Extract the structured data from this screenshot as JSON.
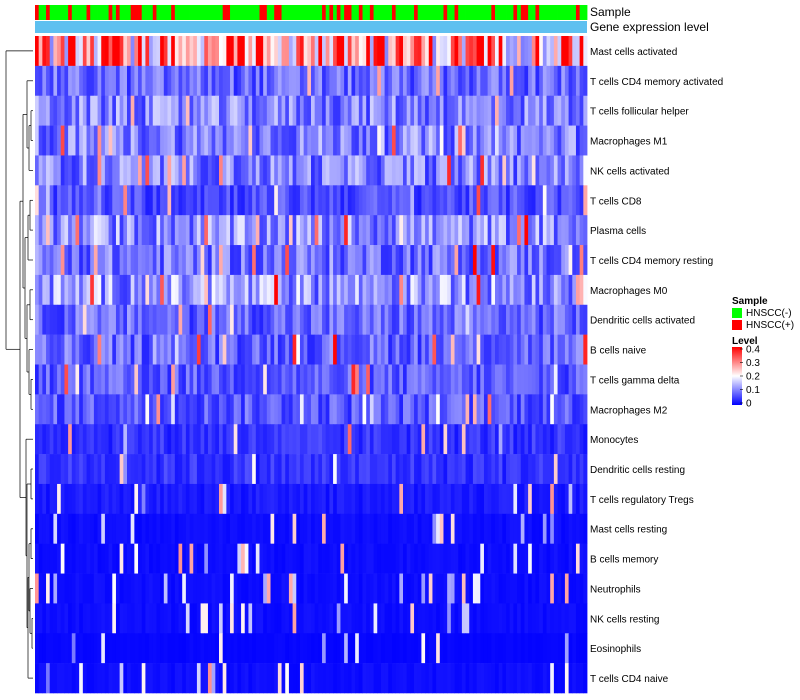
{
  "chart_data": {
    "type": "heatmap",
    "annotations": {
      "sample_label": "Sample",
      "gene_label": "Gene expression level"
    },
    "rows": [
      "Mast cells activated",
      "T cells CD4 memory activated",
      "T cells follicular helper",
      "Macrophages M1",
      "NK cells activated",
      "T cells CD8",
      "Plasma cells",
      "T cells CD4 memory resting",
      "Macrophages M0",
      "Dendritic cells activated",
      "B cells naive",
      "T cells gamma delta",
      "Macrophages M2",
      "Monocytes",
      "Dendritic cells resting",
      "T cells regulatory  Tregs",
      "Mast cells resting",
      "B cells memory",
      "Neutrophils",
      "NK cells resting",
      "Eosinophils",
      "T cells CD4 naive"
    ],
    "row_levels": [
      0.28,
      0.08,
      0.1,
      0.1,
      0.1,
      0.06,
      0.11,
      0.09,
      0.12,
      0.08,
      0.08,
      0.07,
      0.07,
      0.04,
      0.04,
      0.02,
      0.01,
      0.01,
      0.01,
      0.01,
      0.005,
      0.01
    ],
    "column_count": 150,
    "legend": {
      "sample_title": "Sample",
      "sample_items": [
        {
          "label": "HNSCC(-)",
          "color": "#00ff00"
        },
        {
          "label": "HNSCC(+)",
          "color": "#ff0000"
        }
      ],
      "level_title": "Level",
      "level_ticks": [
        "0.4",
        "0.3",
        "0.2",
        "0.1",
        "0"
      ],
      "scale": {
        "min": 0,
        "max": 0.4,
        "low": "#0000ff",
        "mid": "#ffffff",
        "high": "#ff0000"
      }
    },
    "gene_bar_color": "#5ec0f0"
  }
}
